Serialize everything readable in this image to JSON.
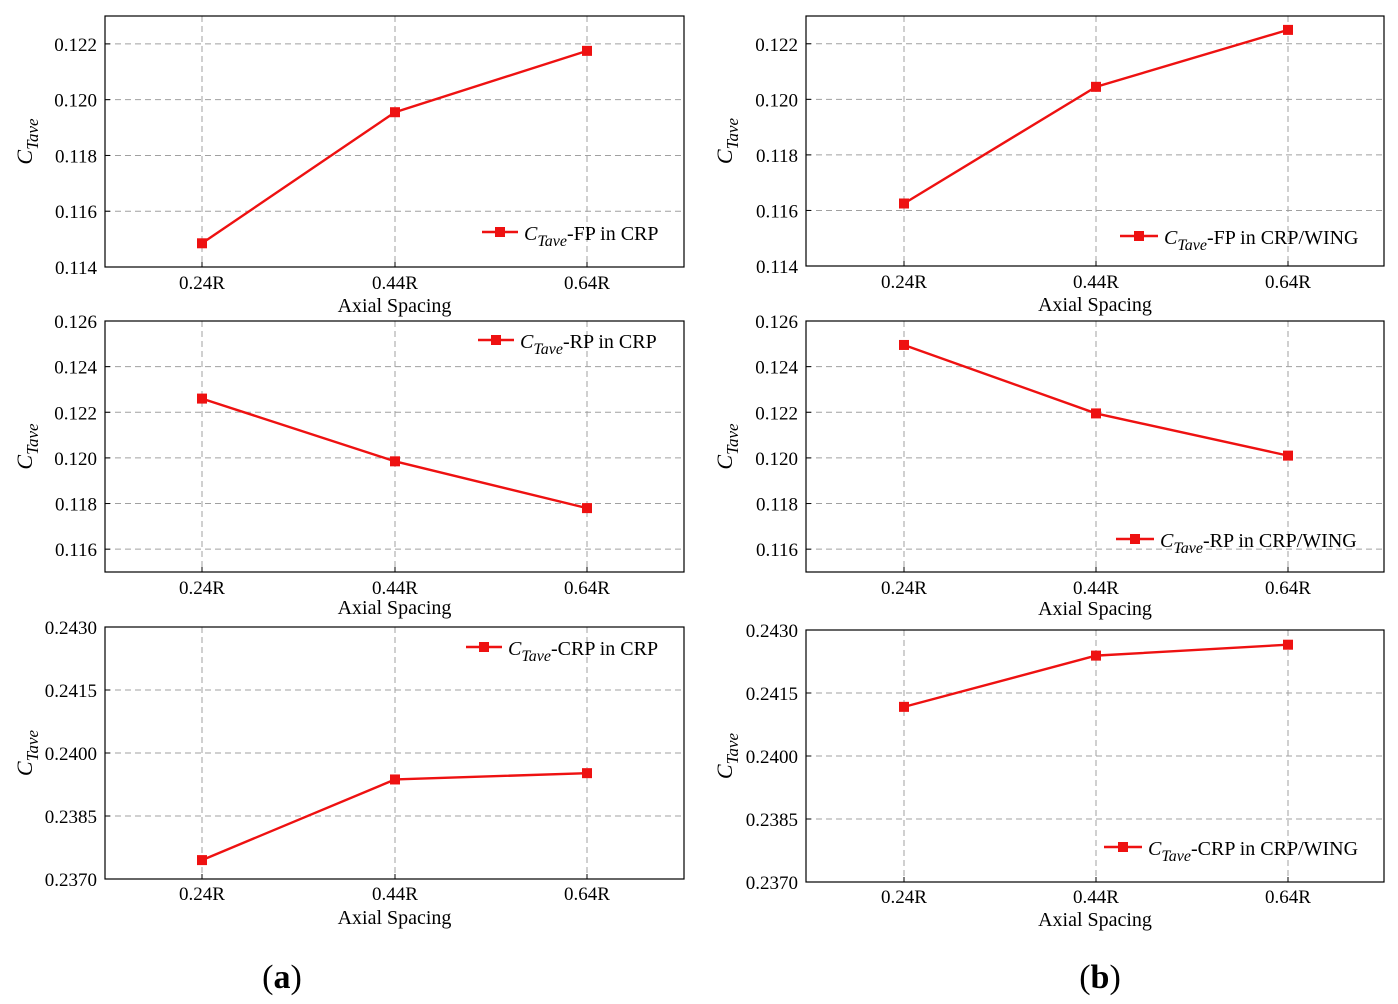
{
  "panel_labels": [
    {
      "open": "(",
      "letter": "a",
      "close": ")"
    },
    {
      "open": "(",
      "letter": "b",
      "close": ")"
    }
  ],
  "colors": {
    "series": "#ee1111",
    "grid": "#a0a0a0",
    "axis": "#000000"
  },
  "chart_data": [
    {
      "type": "line",
      "panel": "a",
      "row": 1,
      "categories": [
        "0.24R",
        "0.44R",
        "0.64R"
      ],
      "series": [
        {
          "name": "CTave-FP in CRP",
          "values": [
            0.11485,
            0.11955,
            0.12175
          ]
        }
      ],
      "legend": {
        "sym": "C",
        "sub": "Tave",
        "rest": "-FP in CRP",
        "placement": "lower-right"
      },
      "xlabel": "Axial Spacing",
      "ylabel": {
        "sym": "C",
        "sub": "Tave"
      },
      "ylim": [
        0.114,
        0.123
      ],
      "yticks": [
        "0.114",
        "0.116",
        "0.118",
        "0.120",
        "0.122"
      ],
      "grid": true
    },
    {
      "type": "line",
      "panel": "b",
      "row": 1,
      "categories": [
        "0.24R",
        "0.44R",
        "0.64R"
      ],
      "series": [
        {
          "name": "CTave-FP in CRP/WING",
          "values": [
            0.11625,
            0.12045,
            0.1225
          ]
        }
      ],
      "legend": {
        "sym": "C",
        "sub": "Tave",
        "rest": "-FP in CRP/WING",
        "placement": "lower-right"
      },
      "xlabel": "Axial Spacing",
      "ylabel": {
        "sym": "C",
        "sub": "Tave"
      },
      "ylim": [
        0.114,
        0.123
      ],
      "yticks": [
        "0.114",
        "0.116",
        "0.118",
        "0.120",
        "0.122"
      ],
      "grid": true
    },
    {
      "type": "line",
      "panel": "a",
      "row": 2,
      "categories": [
        "0.24R",
        "0.44R",
        "0.64R"
      ],
      "series": [
        {
          "name": "CTave-RP in CRP",
          "values": [
            0.1226,
            0.11985,
            0.1178
          ]
        }
      ],
      "legend": {
        "sym": "C",
        "sub": "Tave",
        "rest": "-RP in CRP",
        "placement": "top-right"
      },
      "xlabel": "Axial Spacing",
      "ylabel": {
        "sym": "C",
        "sub": "Tave"
      },
      "ylim": [
        0.115,
        0.126
      ],
      "yticks": [
        "0.116",
        "0.118",
        "0.120",
        "0.122",
        "0.124",
        "0.126"
      ],
      "grid": true
    },
    {
      "type": "line",
      "panel": "b",
      "row": 2,
      "categories": [
        "0.24R",
        "0.44R",
        "0.64R"
      ],
      "series": [
        {
          "name": "CTave-RP in CRP/WING",
          "values": [
            0.12495,
            0.12195,
            0.1201
          ]
        }
      ],
      "legend": {
        "sym": "C",
        "sub": "Tave",
        "rest": "-RP in CRP/WING",
        "placement": "lower-right"
      },
      "xlabel": "Axial Spacing",
      "ylabel": {
        "sym": "C",
        "sub": "Tave"
      },
      "ylim": [
        0.115,
        0.126
      ],
      "yticks": [
        "0.116",
        "0.118",
        "0.120",
        "0.122",
        "0.124",
        "0.126"
      ],
      "grid": true
    },
    {
      "type": "line",
      "panel": "a",
      "row": 3,
      "categories": [
        "0.24R",
        "0.44R",
        "0.64R"
      ],
      "series": [
        {
          "name": "CTave-CRP in CRP",
          "values": [
            0.23745,
            0.23937,
            0.23952
          ]
        }
      ],
      "legend": {
        "sym": "C",
        "sub": "Tave",
        "rest": "-CRP in CRP",
        "placement": "top-right"
      },
      "xlabel": "Axial Spacing",
      "ylabel": {
        "sym": "C",
        "sub": "Tave"
      },
      "ylim": [
        0.237,
        0.243
      ],
      "yticks": [
        "0.2370",
        "0.2385",
        "0.2400",
        "0.2415",
        "0.2430"
      ],
      "grid": true
    },
    {
      "type": "line",
      "panel": "b",
      "row": 3,
      "categories": [
        "0.24R",
        "0.44R",
        "0.64R"
      ],
      "series": [
        {
          "name": "CTave-CRP in CRP/WING",
          "values": [
            0.24117,
            0.24239,
            0.24265
          ]
        }
      ],
      "legend": {
        "sym": "C",
        "sub": "Tave",
        "rest": "-CRP in CRP/WING",
        "placement": "lower-right"
      },
      "xlabel": "Axial Spacing",
      "ylabel": {
        "sym": "C",
        "sub": "Tave"
      },
      "ylim": [
        0.237,
        0.243
      ],
      "yticks": [
        "0.2370",
        "0.2385",
        "0.2400",
        "0.2415",
        "0.2430"
      ],
      "grid": true
    }
  ]
}
